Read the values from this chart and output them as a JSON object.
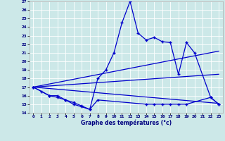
{
  "xlabel": "Graphe des températures (°c)",
  "bg_color": "#cce8e8",
  "line_color": "#0000cc",
  "xlim": [
    -0.5,
    23.5
  ],
  "ylim": [
    14,
    27
  ],
  "xticks": [
    0,
    1,
    2,
    3,
    4,
    5,
    6,
    7,
    8,
    9,
    10,
    11,
    12,
    13,
    14,
    15,
    16,
    17,
    18,
    19,
    20,
    21,
    22,
    23
  ],
  "yticks": [
    14,
    15,
    16,
    17,
    18,
    19,
    20,
    21,
    22,
    23,
    24,
    25,
    26,
    27
  ],
  "curve1_x": [
    0,
    1,
    2,
    3,
    4,
    5,
    6,
    7,
    8,
    9,
    10,
    11,
    12,
    13,
    14,
    15,
    16,
    17,
    18,
    19,
    20,
    22,
    23
  ],
  "curve1_y": [
    17,
    16.5,
    16,
    16,
    15.5,
    15,
    14.7,
    14.4,
    18,
    19,
    21,
    24.5,
    27,
    23.3,
    22.5,
    22.8,
    22.3,
    22.2,
    18.5,
    22.2,
    21,
    15.8,
    15
  ],
  "curve2_x": [
    0,
    2,
    3,
    4,
    5,
    6,
    7,
    8,
    14,
    15,
    16,
    17,
    18,
    19,
    22,
    23
  ],
  "curve2_y": [
    17,
    16,
    15.8,
    15.5,
    15.2,
    14.8,
    14.4,
    15.5,
    15,
    15,
    15,
    15,
    15,
    15,
    15.8,
    15
  ],
  "line1": [
    [
      0,
      17
    ],
    [
      23,
      21.2
    ]
  ],
  "line2": [
    [
      0,
      17
    ],
    [
      23,
      18.5
    ]
  ],
  "line3": [
    [
      0,
      17
    ],
    [
      23,
      15.1
    ]
  ]
}
